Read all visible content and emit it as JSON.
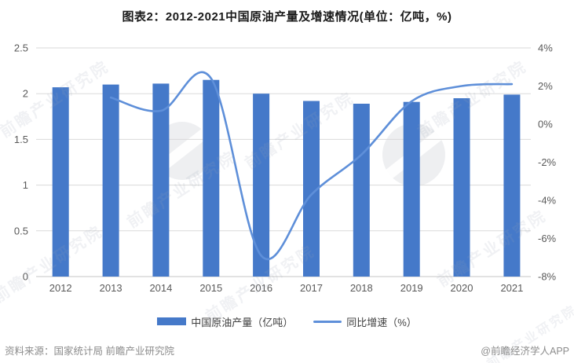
{
  "page": {
    "title": "图表2：2012-2021中国原油产量及增速情况(单位：亿吨，%)"
  },
  "legend": {
    "items": [
      {
        "label": "中国原油产量（亿吨）",
        "marker": "bar-swatch"
      },
      {
        "label": "同比增速（%）",
        "marker": "line-swatch"
      }
    ]
  },
  "footer": {
    "source": "资料来源：国家统计局 前瞻产业研究院",
    "credit": "@前瞻经济学人APP"
  },
  "watermark": {
    "text": "前瞻产业研究院"
  },
  "colors": {
    "bar": "#4579C9",
    "line": "#5E8FD9",
    "grid": "#DADADA",
    "axis_line": "#C6C6C6",
    "tick_text": "#595959",
    "footer_text": "#8C8C8C"
  },
  "chart_data": {
    "type": "bar",
    "subtype": "combo-bar-line",
    "title": "图表2：2012-2021中国原油产量及增速情况(单位：亿吨，%)",
    "categories": [
      "2012",
      "2013",
      "2014",
      "2015",
      "2016",
      "2017",
      "2018",
      "2019",
      "2020",
      "2021"
    ],
    "series": [
      {
        "name": "中国原油产量（亿吨）",
        "type": "bar",
        "axis": "left",
        "values": [
          2.07,
          2.1,
          2.11,
          2.15,
          2.0,
          1.92,
          1.89,
          1.91,
          1.95,
          1.99
        ]
      },
      {
        "name": "同比增速（%）",
        "type": "line",
        "axis": "right",
        "smooth": true,
        "values": [
          null,
          1.4,
          0.7,
          2.4,
          -6.9,
          -3.7,
          -1.6,
          1.2,
          2.0,
          2.1
        ]
      }
    ],
    "left_axis": {
      "min": 0,
      "max": 2.5,
      "step": 0.5,
      "ticks": [
        "0",
        "0.5",
        "1",
        "1.5",
        "2",
        "2.5"
      ]
    },
    "right_axis": {
      "min": -8,
      "max": 4,
      "step": 2,
      "ticks": [
        "-8%",
        "-6%",
        "-4%",
        "-2%",
        "0%",
        "2%",
        "4%"
      ]
    },
    "grid": true,
    "legend_position": "bottom"
  }
}
